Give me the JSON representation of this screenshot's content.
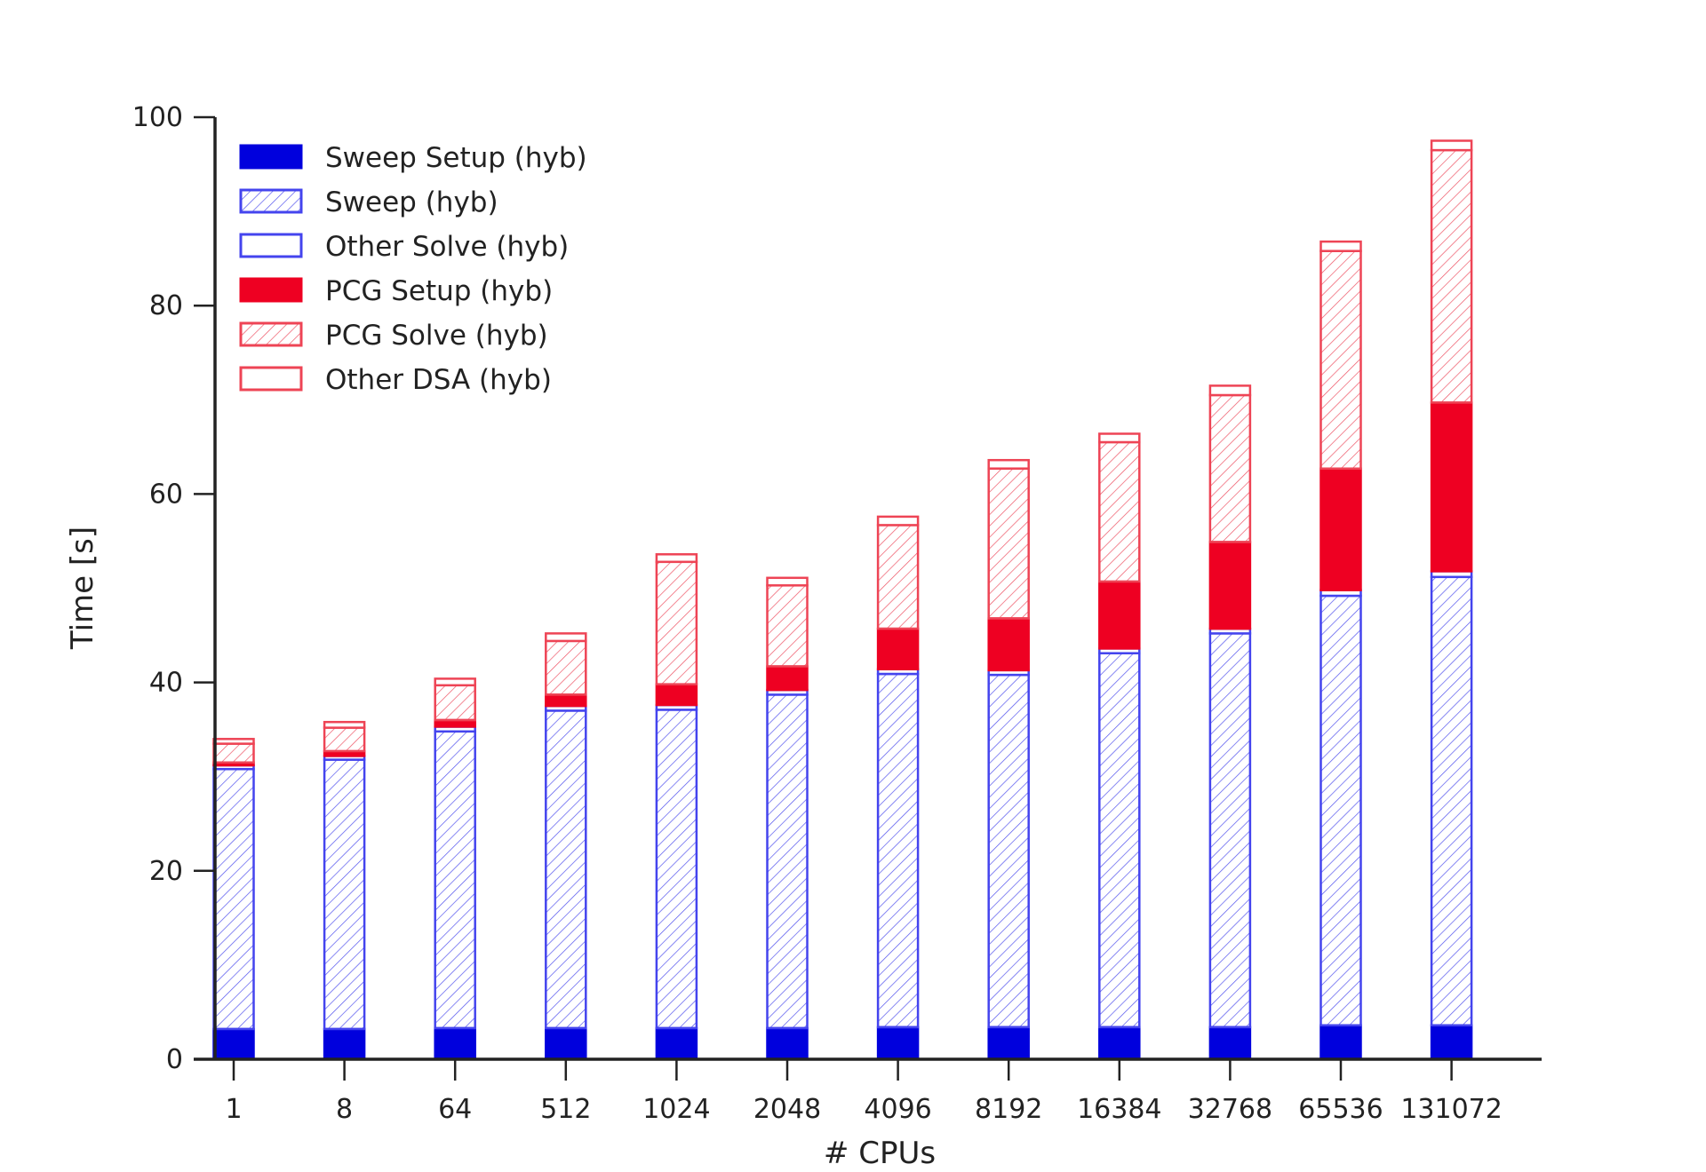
{
  "chart_data": {
    "type": "bar",
    "stacked": true,
    "xlabel": "# CPUs",
    "ylabel": "Time [s]",
    "ylim": [
      0,
      100
    ],
    "yticks": [
      0,
      20,
      40,
      60,
      80,
      100
    ],
    "legend_position": "top-left",
    "grid": false,
    "categories": [
      "1",
      "8",
      "64",
      "512",
      "1024",
      "2048",
      "4096",
      "8192",
      "16384",
      "32768",
      "65536",
      "131072"
    ],
    "series": [
      {
        "name": "Sweep Setup (hyb)",
        "style": "solid",
        "color": "#0000dd",
        "values": [
          3.2,
          3.2,
          3.3,
          3.3,
          3.3,
          3.3,
          3.4,
          3.4,
          3.4,
          3.4,
          3.6,
          3.6
        ]
      },
      {
        "name": "Sweep (hyb)",
        "style": "hatch",
        "color": "#4444ee",
        "values": [
          27.6,
          28.6,
          31.5,
          33.7,
          33.8,
          35.4,
          37.5,
          37.4,
          39.7,
          41.8,
          45.6,
          47.6
        ]
      },
      {
        "name": "Other Solve (hyb)",
        "style": "outline",
        "color": "#4444ee",
        "values": [
          0.4,
          0.4,
          0.5,
          0.5,
          0.5,
          0.5,
          0.5,
          0.5,
          0.5,
          0.5,
          0.6,
          0.6
        ]
      },
      {
        "name": "PCG Setup (hyb)",
        "style": "solid",
        "color": "#ee0022",
        "values": [
          0.3,
          0.5,
          0.7,
          1.2,
          2.2,
          2.5,
          4.3,
          5.5,
          7.1,
          9.2,
          12.9,
          17.9
        ]
      },
      {
        "name": "PCG Solve (hyb)",
        "style": "hatch",
        "color": "#ee4455",
        "values": [
          2.0,
          2.5,
          3.7,
          5.7,
          13.0,
          8.6,
          11.0,
          15.9,
          14.8,
          15.6,
          23.1,
          26.8
        ]
      },
      {
        "name": "Other DSA (hyb)",
        "style": "outline",
        "color": "#ee4455",
        "values": [
          0.5,
          0.6,
          0.7,
          0.8,
          0.8,
          0.8,
          0.9,
          0.9,
          0.9,
          1.0,
          1.0,
          1.0
        ]
      }
    ]
  }
}
